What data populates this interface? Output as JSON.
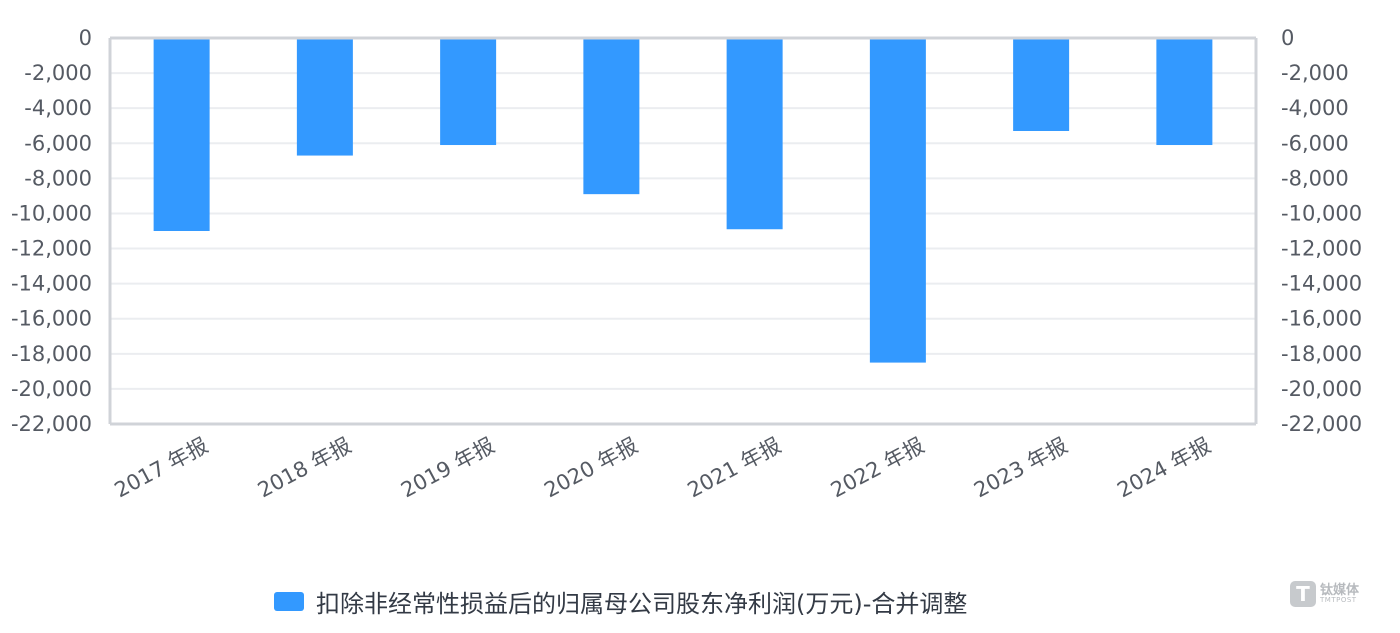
{
  "chart_data": {
    "type": "bar",
    "categories": [
      "2017 年报",
      "2018 年报",
      "2019 年报",
      "2020 年报",
      "2021 年报",
      "2022 年报",
      "2023 年报",
      "2024 年报"
    ],
    "series": [
      {
        "name": "扣除非经常性损益后的归属母公司股东净利润(万元)-合并调整",
        "values": [
          -11000,
          -6700,
          -6100,
          -8900,
          -10900,
          -18500,
          -5300,
          -6100
        ]
      }
    ],
    "ylim": [
      -22000,
      0
    ],
    "yticks": [
      "0",
      "-2,000",
      "-4,000",
      "-6,000",
      "-8,000",
      "-10,000",
      "-12,000",
      "-14,000",
      "-16,000",
      "-18,000",
      "-20,000",
      "-22,000"
    ],
    "ytick_values": [
      0,
      -2000,
      -4000,
      -6000,
      -8000,
      -10000,
      -12000,
      -14000,
      -16000,
      -18000,
      -20000,
      -22000
    ],
    "grid": true,
    "legend_position": "bottom",
    "bar_color": "#3399ff",
    "axis_color": "#d0d3d8",
    "grid_color": "#ebedf0"
  },
  "watermark": {
    "mark": "T",
    "text": "钛媒体",
    "subtext": "TMTPOST"
  }
}
